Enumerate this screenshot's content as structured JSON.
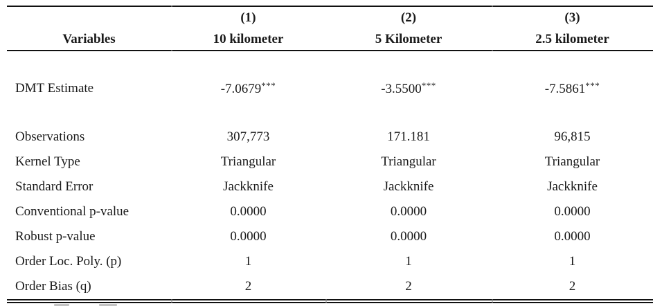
{
  "table": {
    "variables_header": "Variables",
    "columns": [
      {
        "number": "(1)",
        "label": "10 kilometer"
      },
      {
        "number": "(2)",
        "label": "5 Kilometer"
      },
      {
        "number": "(3)",
        "label": "2.5 kilometer"
      }
    ],
    "estimate_row": {
      "label": "DMT Estimate",
      "values": [
        {
          "value": "-7.0679",
          "stars": "***"
        },
        {
          "value": "-3.5500",
          "stars": "***"
        },
        {
          "value": "-7.5861",
          "stars": "***"
        }
      ]
    },
    "rows": [
      {
        "label": "Observations",
        "values": [
          "307,773",
          "171.181",
          "96,815"
        ]
      },
      {
        "label": "Kernel Type",
        "values": [
          "Triangular",
          "Triangular",
          "Triangular"
        ]
      },
      {
        "label": "Standard Error",
        "values": [
          "Jackknife",
          "Jackknife",
          "Jackknife"
        ]
      },
      {
        "label": "Conventional p-value",
        "values": [
          "0.0000",
          "0.0000",
          "0.0000"
        ]
      },
      {
        "label": "Robust p-value",
        "values": [
          "0.0000",
          "0.0000",
          "0.0000"
        ]
      },
      {
        "label": "Order Loc. Poly. (p)",
        "values": [
          "1",
          "1",
          "1"
        ]
      },
      {
        "label": "Order Bias (q)",
        "values": [
          "2",
          "2",
          "2"
        ]
      }
    ]
  },
  "colors": {
    "text": "#1a1a1a",
    "rule": "#111111"
  }
}
